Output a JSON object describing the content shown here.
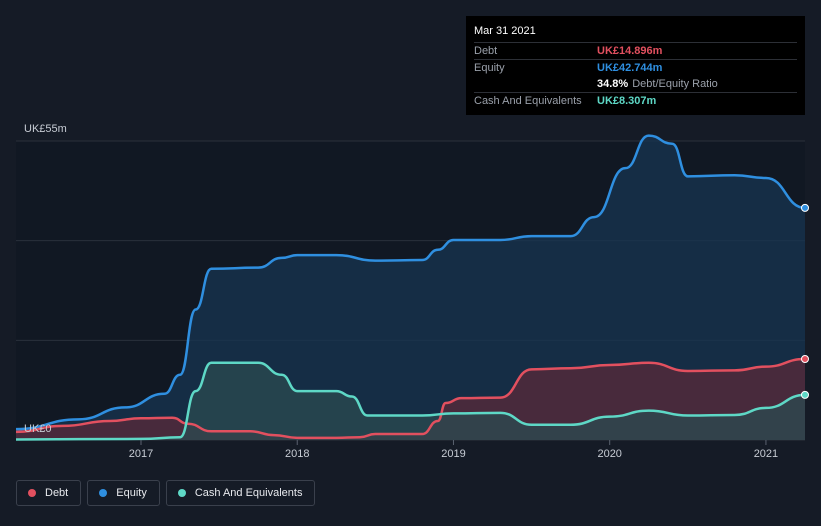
{
  "chart_data": {
    "type": "area",
    "y_top_label": "UK£55m",
    "y_bottom_label": "UK£0",
    "ylim": [
      0,
      55
    ],
    "xlim": [
      2016.2,
      2021.25
    ],
    "x_ticks": [
      2017,
      2018,
      2019,
      2020,
      2021
    ],
    "x_tick_labels": [
      "2017",
      "2018",
      "2019",
      "2020",
      "2021"
    ],
    "series": [
      {
        "name": "Debt",
        "color": "#e2505f",
        "fill": "#5a2a3a",
        "points": [
          [
            2016.2,
            1.5
          ],
          [
            2016.5,
            2.6
          ],
          [
            2016.8,
            3.5
          ],
          [
            2017.0,
            4.0
          ],
          [
            2017.2,
            4.1
          ],
          [
            2017.3,
            3.0
          ],
          [
            2017.45,
            1.6
          ],
          [
            2017.7,
            1.6
          ],
          [
            2017.85,
            0.9
          ],
          [
            2018.0,
            0.4
          ],
          [
            2018.25,
            0.4
          ],
          [
            2018.4,
            0.5
          ],
          [
            2018.5,
            1.1
          ],
          [
            2018.8,
            1.1
          ],
          [
            2018.9,
            3.5
          ],
          [
            2018.95,
            6.8
          ],
          [
            2019.05,
            7.7
          ],
          [
            2019.3,
            7.8
          ],
          [
            2019.5,
            13.0
          ],
          [
            2019.75,
            13.2
          ],
          [
            2020.0,
            13.8
          ],
          [
            2020.25,
            14.2
          ],
          [
            2020.5,
            12.7
          ],
          [
            2020.8,
            12.8
          ],
          [
            2021.0,
            13.5
          ],
          [
            2021.25,
            14.9
          ]
        ]
      },
      {
        "name": "Equity",
        "color": "#2f8fe0",
        "fill": "#173452",
        "points": [
          [
            2016.2,
            2.0
          ],
          [
            2016.6,
            3.8
          ],
          [
            2016.9,
            6.0
          ],
          [
            2017.15,
            8.5
          ],
          [
            2017.25,
            12.0
          ],
          [
            2017.35,
            24.0
          ],
          [
            2017.45,
            31.5
          ],
          [
            2017.75,
            31.7
          ],
          [
            2017.9,
            33.5
          ],
          [
            2018.0,
            34.0
          ],
          [
            2018.25,
            34.0
          ],
          [
            2018.5,
            33.0
          ],
          [
            2018.8,
            33.1
          ],
          [
            2018.9,
            35.0
          ],
          [
            2019.0,
            36.8
          ],
          [
            2019.3,
            36.8
          ],
          [
            2019.5,
            37.5
          ],
          [
            2019.75,
            37.5
          ],
          [
            2019.9,
            41.0
          ],
          [
            2020.1,
            50.0
          ],
          [
            2020.25,
            56.0
          ],
          [
            2020.4,
            54.5
          ],
          [
            2020.5,
            48.5
          ],
          [
            2020.8,
            48.7
          ],
          [
            2021.0,
            48.2
          ],
          [
            2021.25,
            42.7
          ]
        ]
      },
      {
        "name": "Cash And Equivalents",
        "color": "#5ed8c6",
        "fill": "#2b4b50",
        "points": [
          [
            2016.2,
            0.1
          ],
          [
            2017.0,
            0.2
          ],
          [
            2017.25,
            0.5
          ],
          [
            2017.35,
            9.0
          ],
          [
            2017.45,
            14.2
          ],
          [
            2017.75,
            14.2
          ],
          [
            2017.9,
            12.0
          ],
          [
            2018.0,
            9.0
          ],
          [
            2018.25,
            9.0
          ],
          [
            2018.35,
            8.0
          ],
          [
            2018.45,
            4.5
          ],
          [
            2018.8,
            4.5
          ],
          [
            2019.0,
            4.9
          ],
          [
            2019.3,
            5.0
          ],
          [
            2019.5,
            2.8
          ],
          [
            2019.75,
            2.8
          ],
          [
            2020.0,
            4.3
          ],
          [
            2020.25,
            5.4
          ],
          [
            2020.5,
            4.5
          ],
          [
            2020.8,
            4.6
          ],
          [
            2021.0,
            5.9
          ],
          [
            2021.25,
            8.3
          ]
        ]
      }
    ]
  },
  "tooltip": {
    "date": "Mar 31 2021",
    "debt_label": "Debt",
    "debt_value": "UK£14.896m",
    "equity_label": "Equity",
    "equity_value": "UK£42.744m",
    "ratio_value": "34.8%",
    "ratio_label": "Debt/Equity Ratio",
    "cash_label": "Cash And Equivalents",
    "cash_value": "UK£8.307m"
  },
  "legend": {
    "debt": "Debt",
    "equity": "Equity",
    "cash": "Cash And Equivalents"
  },
  "colors": {
    "debt": "#e2505f",
    "equity": "#2f8fe0",
    "cash": "#5ed8c6",
    "background": "#151b26"
  }
}
